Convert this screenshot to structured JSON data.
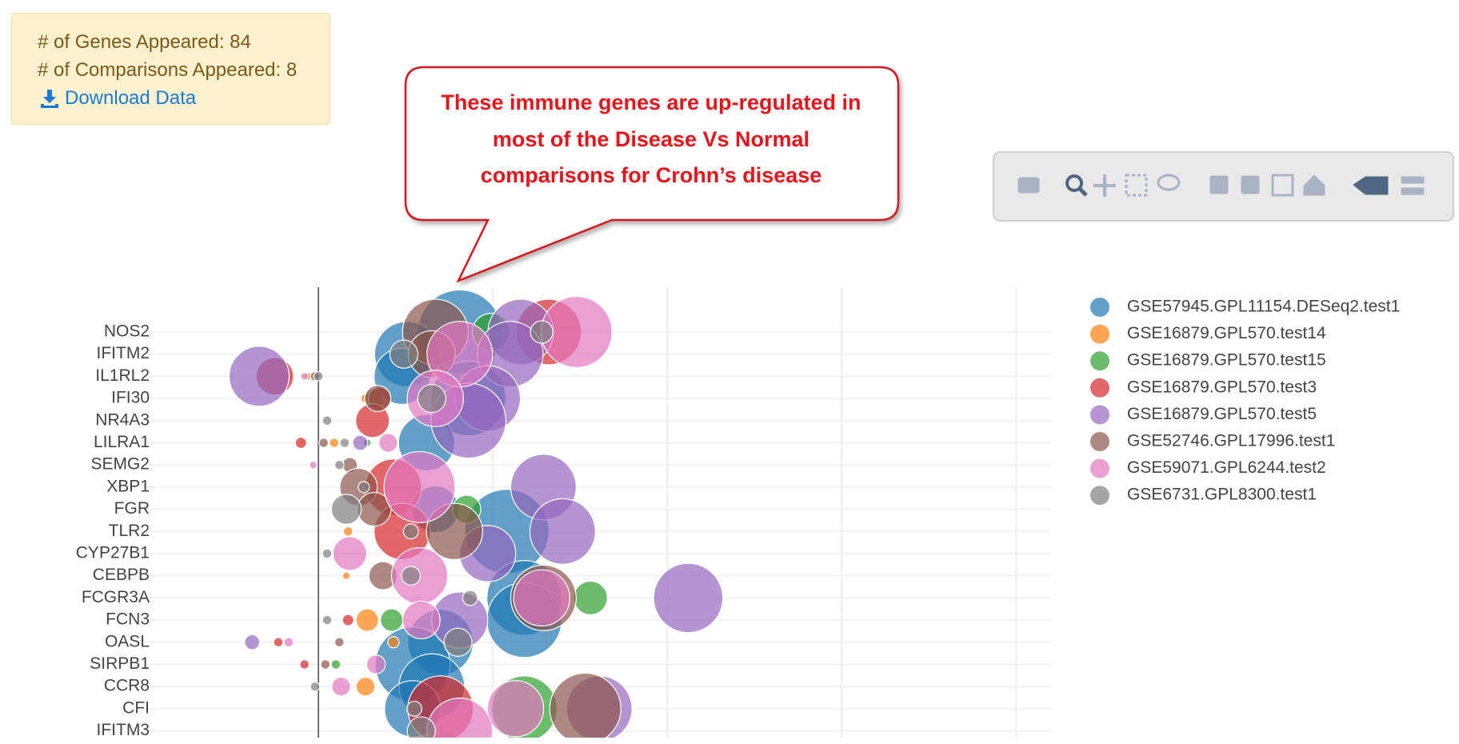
{
  "info": {
    "genes": "# of Genes Appeared: 84",
    "comparisons": "# of Comparisons Appeared: 8",
    "download": "Download Data"
  },
  "callout": {
    "lines": [
      "These immune genes are up-regulated in",
      "most of the Disease  Vs Normal",
      "comparisons for Crohn’s disease"
    ]
  },
  "chart_data": {
    "type": "bubble",
    "categories": [
      "NOS2",
      "IFITM2",
      "IL1RL2",
      "IFI30",
      "NR4A3",
      "LILRA1",
      "SEMG2",
      "XBP1",
      "FGR",
      "TLR2",
      "CYP27B1",
      "CEBPB",
      "FCGR3A",
      "FCN3",
      "OASL",
      "SIRPB1",
      "CCR8",
      "CFI",
      "IFITM3"
    ],
    "xlim": [
      -1,
      4.2
    ],
    "xticks": [
      0,
      1,
      2,
      3,
      4
    ],
    "grid": true,
    "legend": "right",
    "series": [
      {
        "name": "GSE57945.GPL11154.DESeq2.test1",
        "color": "#1f77b4",
        "y": [
          "NOS2",
          "IFITM2",
          "IL1RL2",
          "IFI30",
          "LILRA1",
          "FGR",
          "TLR2",
          "FCGR3A",
          "FCN3",
          "OASL",
          "SIRPB1",
          "CCR8",
          "CFI"
        ],
        "x": [
          0.81,
          0.51,
          0.48,
          0.86,
          0.62,
          0.67,
          1.08,
          1.18,
          1.18,
          0.7,
          0.54,
          0.65,
          0.54
        ],
        "sizes": [
          90,
          70,
          60,
          80,
          60,
          50,
          90,
          80,
          80,
          70,
          80,
          70,
          60
        ]
      },
      {
        "name": "GSE16879.GPL570.test14",
        "color": "#ff7f0e",
        "y": [
          "IL1RL2",
          "IFI30",
          "LILRA1",
          "TLR2",
          "CEBPB",
          "FCN3",
          "OASL",
          "CCR8"
        ],
        "x": [
          -0.06,
          0.27,
          0.09,
          0.17,
          0.16,
          0.28,
          0.43,
          0.27
        ],
        "sizes": [
          8,
          10,
          10,
          10,
          8,
          24,
          12,
          20
        ]
      },
      {
        "name": "GSE16879.GPL570.test15",
        "color": "#2ca02c",
        "y": [
          "NOS2",
          "IFI30",
          "LILRA1",
          "FGR",
          "FCGR3A",
          "FCN3",
          "SIRPB1",
          "CFI"
        ],
        "x": [
          0.99,
          0.32,
          0.28,
          0.85,
          1.56,
          0.42,
          0.1,
          1.18
        ],
        "sizes": [
          40,
          20,
          8,
          30,
          36,
          24,
          10,
          70
        ]
      },
      {
        "name": "GSE16879.GPL570.test3",
        "color": "#d62728",
        "y": [
          "NOS2",
          "IL1RL2",
          "IFI30",
          "NR4A3",
          "LILRA1",
          "XBP1",
          "TLR2",
          "FCN3",
          "OASL",
          "SIRPB1",
          "CFI"
        ],
        "x": [
          1.32,
          -0.25,
          0.35,
          0.31,
          -0.1,
          0.43,
          0.48,
          0.17,
          -0.23,
          -0.08,
          0.7
        ],
        "sizes": [
          70,
          40,
          24,
          36,
          12,
          60,
          60,
          12,
          10,
          10,
          70
        ]
      },
      {
        "name": "GSE16879.GPL570.test5",
        "color": "#9467bd",
        "y": [
          "NOS2",
          "IFITM2",
          "IL1RL2",
          "IFI30",
          "NR4A3",
          "LILRA1",
          "XBP1",
          "TLR2",
          "CYP27B1",
          "FCGR3A",
          "FCN3",
          "OASL",
          "CFI"
        ],
        "x": [
          1.16,
          1.1,
          -0.34,
          0.97,
          0.86,
          0.24,
          1.29,
          1.4,
          0.97,
          2.12,
          0.81,
          -0.38,
          1.61
        ],
        "sizes": [
          70,
          70,
          64,
          70,
          80,
          16,
          70,
          70,
          60,
          74,
          60,
          16,
          70
        ]
      },
      {
        "name": "GSE52746.GPL17996.test1",
        "color": "#8c564b",
        "y": [
          "NOS2",
          "IFITM2",
          "IL1RL2",
          "IFI30",
          "LILRA1",
          "SEMG2",
          "XBP1",
          "FGR",
          "TLR2",
          "CEBPB",
          "FCGR3A",
          "OASL",
          "SIRPB1",
          "CFI"
        ],
        "x": [
          0.67,
          0.65,
          -0.02,
          0.34,
          0.03,
          0.18,
          0.23,
          0.32,
          0.78,
          0.37,
          1.29,
          0.12,
          0.04,
          1.53
        ],
        "sizes": [
          70,
          50,
          10,
          28,
          10,
          16,
          40,
          36,
          60,
          30,
          70,
          10,
          10,
          76
        ]
      },
      {
        "name": "GSE59071.GPL6244.test2",
        "color": "#e377c2",
        "y": [
          "NOS2",
          "IFITM2",
          "IL1RL2",
          "IFI30",
          "LILRA1",
          "SEMG2",
          "XBP1",
          "CYP27B1",
          "CEBPB",
          "FCGR3A",
          "FCN3",
          "OASL",
          "SIRPB1",
          "CCR8",
          "CFI",
          "IFITM3"
        ],
        "x": [
          1.48,
          0.81,
          -0.08,
          0.67,
          0.4,
          -0.03,
          0.58,
          0.18,
          0.58,
          1.28,
          0.59,
          -0.17,
          0.33,
          0.13,
          1.13,
          0.81
        ],
        "sizes": [
          76,
          70,
          8,
          60,
          20,
          8,
          76,
          36,
          60,
          60,
          40,
          10,
          20,
          20,
          60,
          70
        ]
      },
      {
        "name": "GSE6731.GPL8300.test1",
        "color": "#7f7f7f",
        "y": [
          "NOS2",
          "IFITM2",
          "IL1RL2",
          "IFI30",
          "NR4A3",
          "LILRA1",
          "SEMG2",
          "XBP1",
          "FGR",
          "TLR2",
          "CYP27B1",
          "CEBPB",
          "FCGR3A",
          "FCN3",
          "OASL",
          "CCR8",
          "CFI",
          "IFITM3"
        ],
        "x": [
          1.28,
          0.49,
          0.0,
          0.65,
          0.05,
          0.15,
          0.12,
          0.26,
          0.16,
          0.53,
          0.05,
          0.53,
          0.87,
          0.05,
          0.8,
          -0.02,
          0.55,
          0.59
        ],
        "sizes": [
          24,
          30,
          10,
          30,
          10,
          10,
          10,
          12,
          32,
          16,
          10,
          20,
          16,
          10,
          30,
          10,
          16,
          30
        ]
      }
    ]
  }
}
